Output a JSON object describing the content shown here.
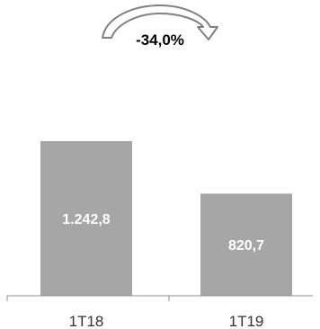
{
  "chart_data": {
    "type": "bar",
    "categories": [
      "1T18",
      "1T19"
    ],
    "values": [
      1242.8,
      820.7
    ],
    "data_labels": [
      "1.242,8",
      "820,7"
    ],
    "ylim": [
      0,
      1242.8
    ],
    "grid": false,
    "legend": "none",
    "annotation": {
      "text": "-34,0%",
      "shape": "curved-arrow",
      "from": "1T18",
      "to": "1T19"
    }
  },
  "colors": {
    "bar": "#a6a6a6",
    "arrow_fill": "#ffffff",
    "arrow_stroke": "#808080",
    "axis": "#8c8c8c",
    "label_text": "#ffffff",
    "tick_text": "#333333",
    "annotation_text": "#000000"
  }
}
